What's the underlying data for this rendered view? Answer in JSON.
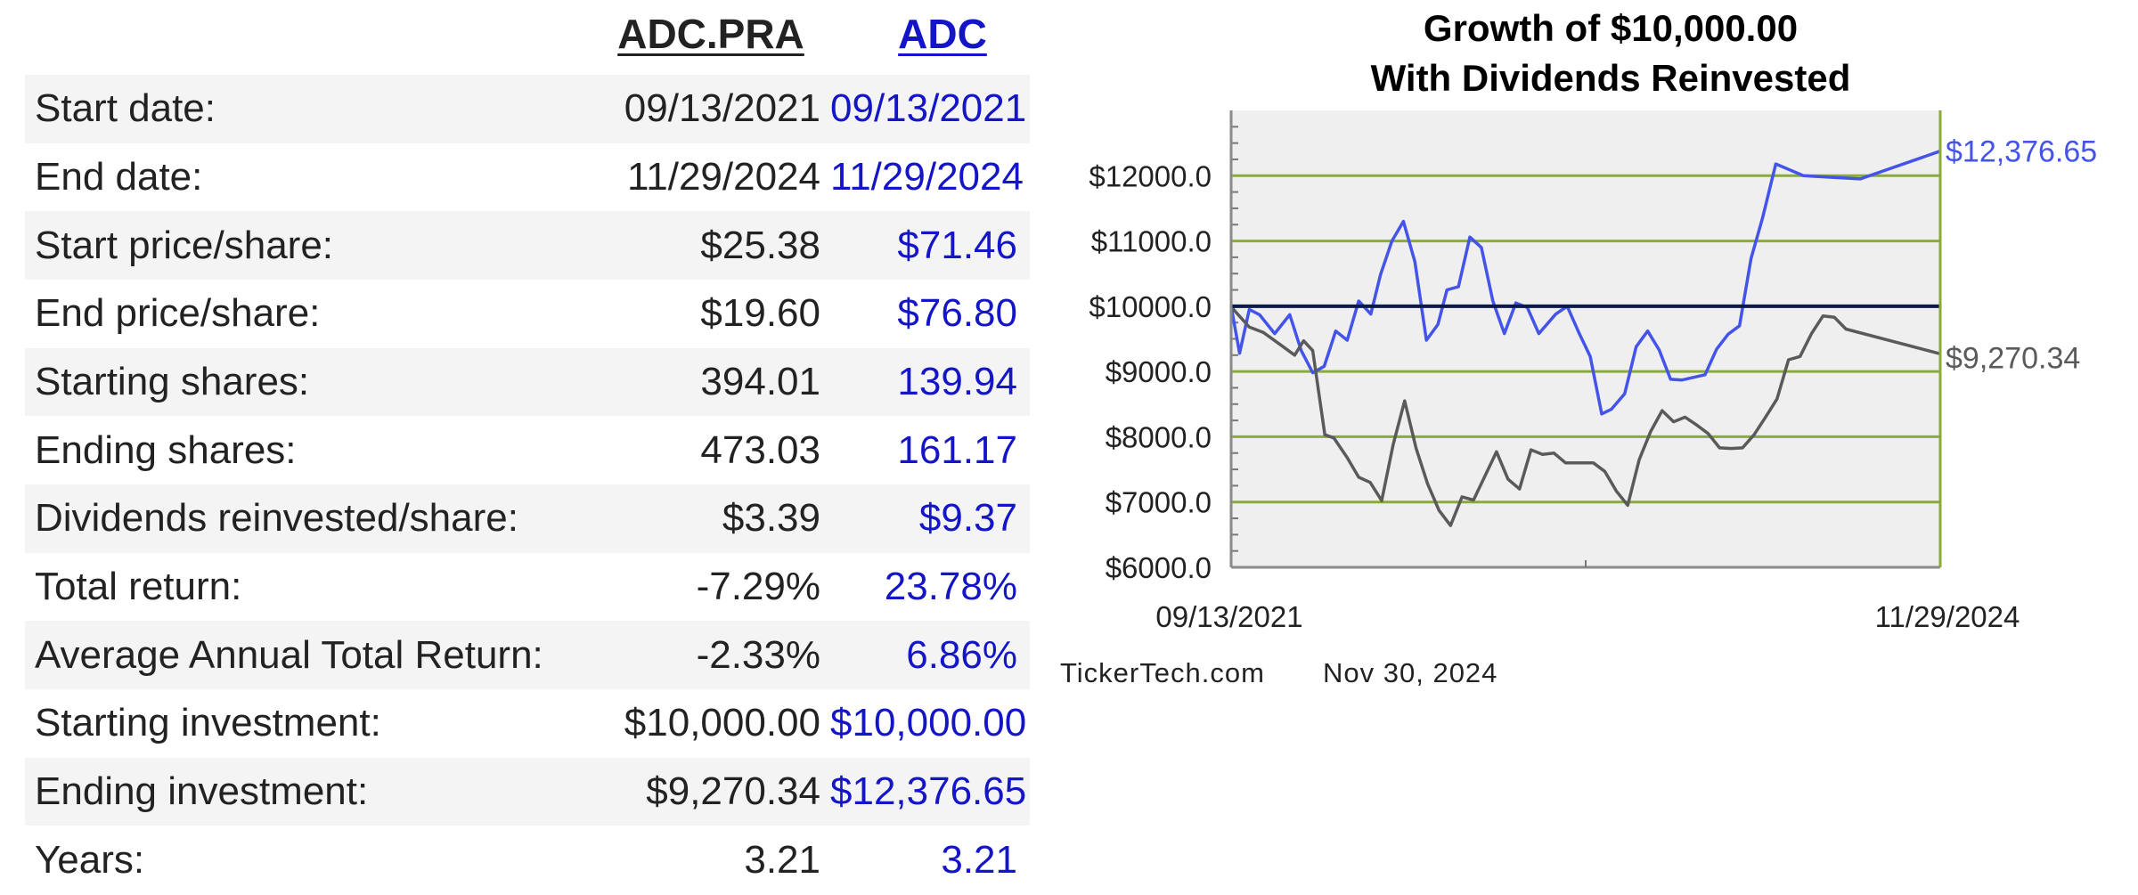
{
  "table": {
    "columns": [
      {
        "symbol": "ADC.PRA",
        "color": "#222222"
      },
      {
        "symbol": "ADC",
        "color": "#1515c8"
      }
    ],
    "rows": [
      {
        "label": "Start date:",
        "a": "09/13/2021",
        "b": "09/13/2021"
      },
      {
        "label": "End date:",
        "a": "11/29/2024",
        "b": "11/29/2024"
      },
      {
        "label": "Start price/share:",
        "a": "$25.38",
        "b": "$71.46"
      },
      {
        "label": "End price/share:",
        "a": "$19.60",
        "b": "$76.80"
      },
      {
        "label": "Starting shares:",
        "a": "394.01",
        "b": "139.94"
      },
      {
        "label": "Ending shares:",
        "a": "473.03",
        "b": "161.17"
      },
      {
        "label": "Dividends reinvested/share:",
        "a": "$3.39",
        "b": "$9.37"
      },
      {
        "label": "Total return:",
        "a": "-7.29%",
        "b": "23.78%"
      },
      {
        "label": "Average Annual Total Return:",
        "a": "-2.33%",
        "b": "6.86%"
      },
      {
        "label": "Starting investment:",
        "a": "$10,000.00",
        "b": "$10,000.00"
      },
      {
        "label": "Ending investment:",
        "a": "$9,270.34",
        "b": "$12,376.65"
      },
      {
        "label": "Years:",
        "a": "3.21",
        "b": "3.21"
      }
    ]
  },
  "chart_data": {
    "type": "line",
    "title": "Growth of $10,000.00\nWith Dividends Reinvested",
    "title_lines": [
      "Growth of $10,000.00",
      "With Dividends Reinvested"
    ],
    "xlabel": "",
    "ylabel": "",
    "ylim": [
      6000,
      13000
    ],
    "yticks": [
      6000,
      7000,
      8000,
      9000,
      10000,
      11000,
      12000
    ],
    "ytick_labels": [
      "$6000.0",
      "$7000.0",
      "$8000.0",
      "$9000.0",
      "$10000.0",
      "$11000.0",
      "$12000.0"
    ],
    "xlim": [
      "2021-09-13",
      "2024-11-29"
    ],
    "x_tick_labels": [
      "09/13/2021",
      "11/29/2024"
    ],
    "grid": true,
    "grid_color": "#8aaa3c",
    "plot_background": "#efefef",
    "baseline": 10000,
    "baseline_color": "#0b1a4a",
    "series": [
      {
        "color": "#4454e8",
        "end_label": "$12,376.65",
        "points": [
          [
            "2021-09-13",
            10000
          ],
          [
            "2021-09-27",
            9280
          ],
          [
            "2021-10-13",
            9950
          ],
          [
            "2021-10-30",
            9870
          ],
          [
            "2021-11-24",
            9580
          ],
          [
            "2021-12-19",
            9870
          ],
          [
            "2022-01-07",
            9320
          ],
          [
            "2022-01-26",
            8980
          ],
          [
            "2022-02-14",
            9080
          ],
          [
            "2022-03-05",
            9620
          ],
          [
            "2022-03-24",
            9480
          ],
          [
            "2022-04-12",
            10080
          ],
          [
            "2022-05-02",
            9880
          ],
          [
            "2022-05-18",
            10480
          ],
          [
            "2022-06-06",
            11000
          ],
          [
            "2022-06-25",
            11300
          ],
          [
            "2022-07-14",
            10680
          ],
          [
            "2022-08-02",
            9480
          ],
          [
            "2022-08-21",
            9720
          ],
          [
            "2022-09-05",
            10250
          ],
          [
            "2022-09-24",
            10300
          ],
          [
            "2022-10-13",
            11060
          ],
          [
            "2022-11-01",
            10900
          ],
          [
            "2022-11-20",
            10080
          ],
          [
            "2022-12-09",
            9580
          ],
          [
            "2022-12-28",
            10050
          ],
          [
            "2023-01-16",
            9980
          ],
          [
            "2023-02-04",
            9580
          ],
          [
            "2023-03-04",
            9880
          ],
          [
            "2023-03-23",
            10000
          ],
          [
            "2023-04-11",
            9600
          ],
          [
            "2023-04-30",
            9230
          ],
          [
            "2023-05-19",
            8350
          ],
          [
            "2023-06-04",
            8420
          ],
          [
            "2023-06-26",
            8660
          ],
          [
            "2023-07-15",
            9380
          ],
          [
            "2023-08-03",
            9620
          ],
          [
            "2023-08-22",
            9330
          ],
          [
            "2023-09-10",
            8880
          ],
          [
            "2023-09-29",
            8870
          ],
          [
            "2023-11-06",
            8950
          ],
          [
            "2023-11-25",
            9340
          ],
          [
            "2023-12-14",
            9570
          ],
          [
            "2024-01-02",
            9700
          ],
          [
            "2024-01-21",
            10730
          ],
          [
            "2024-02-09",
            11350
          ],
          [
            "2024-03-02",
            12180
          ],
          [
            "2024-04-17",
            12000
          ],
          [
            "2024-07-20",
            11950
          ],
          [
            "2024-11-29",
            12376.65
          ]
        ]
      },
      {
        "color": "#5a5a5a",
        "end_label": "$9,270.34",
        "points": [
          [
            "2021-09-13",
            9990
          ],
          [
            "2021-10-13",
            9680
          ],
          [
            "2021-11-05",
            9600
          ],
          [
            "2021-12-05",
            9400
          ],
          [
            "2021-12-27",
            9250
          ],
          [
            "2022-01-11",
            9470
          ],
          [
            "2022-01-26",
            9320
          ],
          [
            "2022-02-15",
            8030
          ],
          [
            "2022-03-02",
            7980
          ],
          [
            "2022-03-24",
            7680
          ],
          [
            "2022-04-12",
            7380
          ],
          [
            "2022-05-01",
            7300
          ],
          [
            "2022-05-20",
            7020
          ],
          [
            "2022-06-08",
            7880
          ],
          [
            "2022-06-27",
            8550
          ],
          [
            "2022-07-16",
            7820
          ],
          [
            "2022-08-04",
            7280
          ],
          [
            "2022-08-23",
            6870
          ],
          [
            "2022-09-11",
            6640
          ],
          [
            "2022-09-30",
            7080
          ],
          [
            "2022-10-19",
            7030
          ],
          [
            "2022-11-07",
            7400
          ],
          [
            "2022-11-26",
            7770
          ],
          [
            "2022-12-15",
            7350
          ],
          [
            "2023-01-03",
            7200
          ],
          [
            "2023-01-22",
            7800
          ],
          [
            "2023-02-10",
            7730
          ],
          [
            "2023-03-01",
            7750
          ],
          [
            "2023-03-20",
            7600
          ],
          [
            "2023-05-05",
            7600
          ],
          [
            "2023-05-24",
            7470
          ],
          [
            "2023-06-12",
            7170
          ],
          [
            "2023-07-01",
            6950
          ],
          [
            "2023-07-20",
            7650
          ],
          [
            "2023-08-08",
            8080
          ],
          [
            "2023-08-27",
            8400
          ],
          [
            "2023-09-15",
            8230
          ],
          [
            "2023-10-04",
            8300
          ],
          [
            "2023-10-23",
            8180
          ],
          [
            "2023-11-11",
            8050
          ],
          [
            "2023-11-30",
            7830
          ],
          [
            "2023-12-19",
            7820
          ],
          [
            "2024-01-07",
            7830
          ],
          [
            "2024-01-26",
            8030
          ],
          [
            "2024-02-14",
            8300
          ],
          [
            "2024-03-04",
            8580
          ],
          [
            "2024-03-23",
            9180
          ],
          [
            "2024-04-11",
            9230
          ],
          [
            "2024-04-30",
            9580
          ],
          [
            "2024-05-19",
            9850
          ],
          [
            "2024-06-07",
            9830
          ],
          [
            "2024-06-26",
            9650
          ],
          [
            "2024-11-29",
            9270.34
          ]
        ]
      }
    ]
  },
  "credit": {
    "source": "TickerTech.com",
    "date": "Nov 30, 2024"
  }
}
